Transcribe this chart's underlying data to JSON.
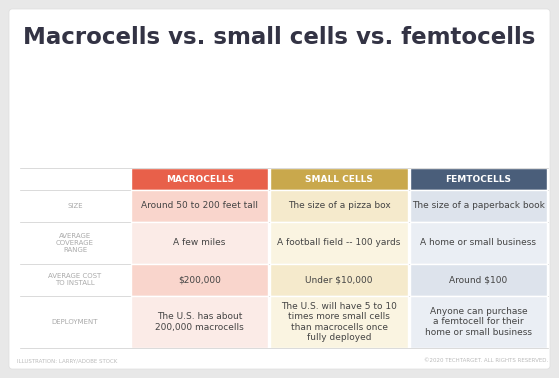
{
  "title": "Macrocells vs. small cells vs. femtocells",
  "title_fontsize": 16.5,
  "title_color": "#333344",
  "bg_color": "#e8e8e8",
  "card_color": "#ffffff",
  "columns": [
    "MACROCELLS",
    "SMALL CELLS",
    "FEMTOCELLS"
  ],
  "col_colors": [
    "#e8604a",
    "#c9a84c",
    "#4a5e7a"
  ],
  "col_text_color": "#ffffff",
  "row_labels": [
    "SIZE",
    "AVERAGE\nCOVERAGE\nRANGE",
    "AVERAGE COST\nTO INSTALL",
    "DEPLOYMENT"
  ],
  "row_label_color": "#aaaaaa",
  "row_label_fontsize": 5.0,
  "cell_colors": [
    [
      "#f9d5cc",
      "#f5eacc",
      "#dde3ec"
    ],
    [
      "#fbebe7",
      "#faf4e1",
      "#eaeef4"
    ],
    [
      "#f9d5cc",
      "#f5eacc",
      "#dde3ec"
    ],
    [
      "#fbebe7",
      "#faf4e1",
      "#eaeef4"
    ]
  ],
  "data": [
    [
      "Around 50 to 200 feet tall",
      "The size of a pizza box",
      "The size of a paperback book"
    ],
    [
      "A few miles",
      "A football field -- 100 yards",
      "A home or small business"
    ],
    [
      "$200,000",
      "Under $10,000",
      "Around $100"
    ],
    [
      "The U.S. has about\n200,000 macrocells",
      "The U.S. will have 5 to 10\ntimes more small cells\nthan macrocells once\nfully deployed",
      "Anyone can purchase\na femtocell for their\nhome or small business"
    ]
  ],
  "cell_text_color": "#444444",
  "cell_fontsize": 6.5,
  "footer_left": "ILLUSTRATION: LARRY/ADOBE STOCK",
  "footer_right": "©2020 TECHTARGET. ALL RIGHTS RESERVED.",
  "footer_color": "#bbbbbb",
  "footer_fontsize": 4.0
}
